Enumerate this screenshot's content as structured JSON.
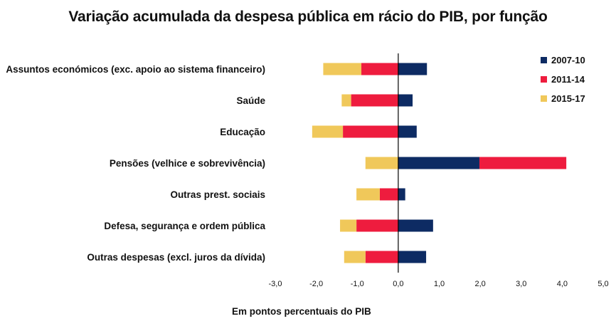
{
  "chart_data": {
    "type": "bar",
    "orientation": "horizontal",
    "stacked": true,
    "title": "Variação acumulada da despesa pública em rácio do PIB, por função",
    "xlabel": "Em pontos percentuais do PIB",
    "ylabel": "",
    "xlim": [
      -3.0,
      5.0
    ],
    "x_ticks": [
      "-3,0",
      "-2,0",
      "-1,0",
      "0,0",
      "1,0",
      "2,0",
      "3,0",
      "4,0",
      "5,0"
    ],
    "grid": false,
    "legend_position": "top-right",
    "categories": [
      "Assuntos económicos (exc. apoio ao sistema financeiro)",
      "Saúde",
      "Educação",
      "Pensões (velhice e sobrevivência)",
      "Outras prest. sociais",
      "Defesa, segurança e ordem pública",
      "Outras despesas (excl. juros da dívida)"
    ],
    "series": [
      {
        "name": "2007-10",
        "color": "#0d2b63",
        "values": [
          0.7,
          0.35,
          0.45,
          1.98,
          0.17,
          0.85,
          0.68
        ]
      },
      {
        "name": "2011-14",
        "color": "#ee1c3e",
        "values": [
          -0.9,
          -1.15,
          -1.35,
          2.12,
          -0.45,
          -1.02,
          -0.8
        ]
      },
      {
        "name": "2015-17",
        "color": "#f0c85a",
        "values": [
          -0.93,
          -0.23,
          -0.75,
          -0.8,
          -0.57,
          -0.4,
          -0.52
        ]
      }
    ]
  }
}
